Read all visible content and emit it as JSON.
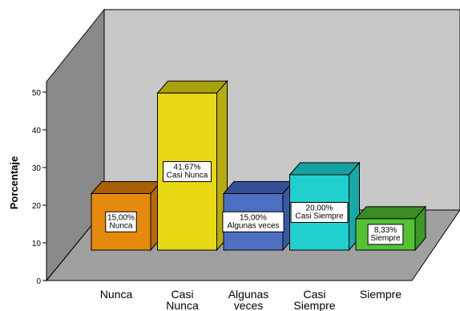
{
  "chart_data": {
    "type": "bar",
    "ylabel": "Porcentaje",
    "ylim": [
      0,
      50
    ],
    "yticks": [
      "0",
      "10",
      "20",
      "30",
      "40",
      "50"
    ],
    "categories": [
      [
        "Nunca"
      ],
      [
        "Casi",
        "Nunca"
      ],
      [
        "Algunas",
        "veces"
      ],
      [
        "Casi",
        "Siempre"
      ],
      [
        "Siempre"
      ]
    ],
    "values": [
      15.0,
      41.67,
      15.0,
      20.0,
      8.33
    ],
    "data_labels": [
      [
        "15,00%",
        "Nunca"
      ],
      [
        "41,67%",
        "Casi Nunca"
      ],
      [
        "15,00%",
        "Algunas veces"
      ],
      [
        "20,00%",
        "Casi Siempre"
      ],
      [
        "8,33%",
        "Siempre"
      ]
    ],
    "colors": {
      "bars": [
        "#e58a0f",
        "#e8d914",
        "#4c6fc2",
        "#22cfcf",
        "#55c236"
      ],
      "bar_tops": [
        "#a85f05",
        "#a8a10c",
        "#344f95",
        "#17a0a0",
        "#3a8c22"
      ],
      "bar_sides": [
        "#b86a08",
        "#b8ab0f",
        "#3a58a0",
        "#18a8a8",
        "#3e9626"
      ],
      "back_wall": "#c8c8c8",
      "side_wall": "#8a8a8a",
      "floor": "#a0a0a0"
    }
  }
}
